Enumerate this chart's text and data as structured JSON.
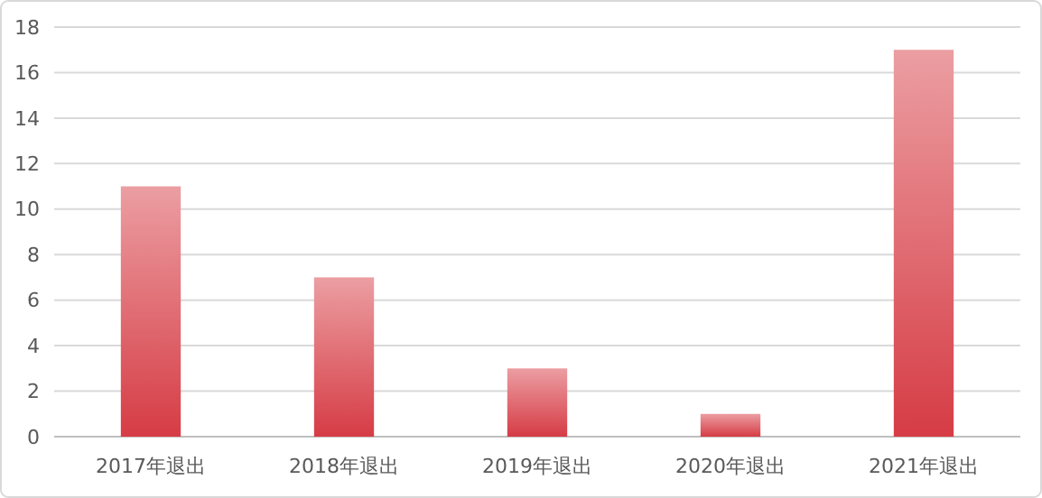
{
  "chart_data": {
    "type": "bar",
    "categories": [
      "2017年退出",
      "2018年退出",
      "2019年退出",
      "2020年退出",
      "2021年退出"
    ],
    "values": [
      11,
      7,
      3,
      1,
      17
    ],
    "color": "#d63c45",
    "ylim": [
      0,
      18
    ],
    "yticks": [
      0,
      2,
      4,
      6,
      8,
      10,
      12,
      14,
      16,
      18
    ],
    "grid": "y"
  }
}
